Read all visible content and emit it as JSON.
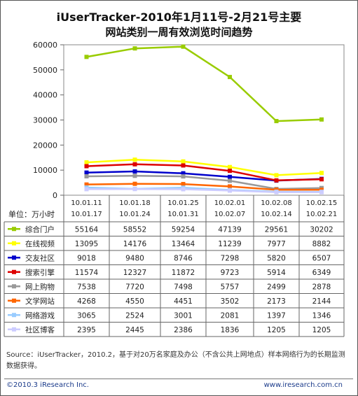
{
  "title_line1": "iUserTracker-2010年1月11号-2月21号主要",
  "title_line2": "网站类别一周有效浏览时间趋势",
  "unit_label": "单位：万小时",
  "source": "Source：iUserTracker，2010.2，基于对20万名家庭及办公（不含公共上网地点）样本网络行为的长期监测数据获得。",
  "copyright": "©2010.3 iResearch Inc.",
  "website": "www.iresearch.com.cn",
  "chart_data": {
    "type": "line",
    "y_ticks": [
      0,
      10000,
      20000,
      30000,
      40000,
      50000,
      60000
    ],
    "ylim": [
      0,
      60000
    ],
    "grid": false,
    "categories": [
      [
        "10.01.11",
        "10.01.17"
      ],
      [
        "10.01.18",
        "10.01.24"
      ],
      [
        "10.01.25",
        "10.01.31"
      ],
      [
        "10.02.01",
        "10.02.07"
      ],
      [
        "10.02.08",
        "10.02.14"
      ],
      [
        "10.02.15",
        "10.02.21"
      ]
    ],
    "series": [
      {
        "name": "综合门户",
        "color": "#99cc00",
        "values": [
          55164,
          58552,
          59254,
          47139,
          29561,
          30202
        ]
      },
      {
        "name": "在线视频",
        "color": "#ffff00",
        "values": [
          13095,
          14176,
          13464,
          11239,
          7977,
          8882
        ]
      },
      {
        "name": "交友社区",
        "color": "#0000cc",
        "values": [
          9018,
          9480,
          8746,
          7298,
          5820,
          6507
        ]
      },
      {
        "name": "搜索引擎",
        "color": "#dd0000",
        "values": [
          11574,
          12327,
          11872,
          9723,
          5914,
          6349
        ]
      },
      {
        "name": "网上购物",
        "color": "#999999",
        "values": [
          7538,
          7720,
          7498,
          5757,
          2499,
          2878
        ]
      },
      {
        "name": "文学网站",
        "color": "#ff6600",
        "values": [
          4268,
          4550,
          4451,
          3502,
          2173,
          2144
        ]
      },
      {
        "name": "网络游戏",
        "color": "#99ccff",
        "values": [
          3065,
          2524,
          3001,
          2081,
          1397,
          1346
        ]
      },
      {
        "name": "社区博客",
        "color": "#ccccff",
        "values": [
          2395,
          2445,
          2386,
          1836,
          1205,
          1205
        ]
      }
    ]
  }
}
